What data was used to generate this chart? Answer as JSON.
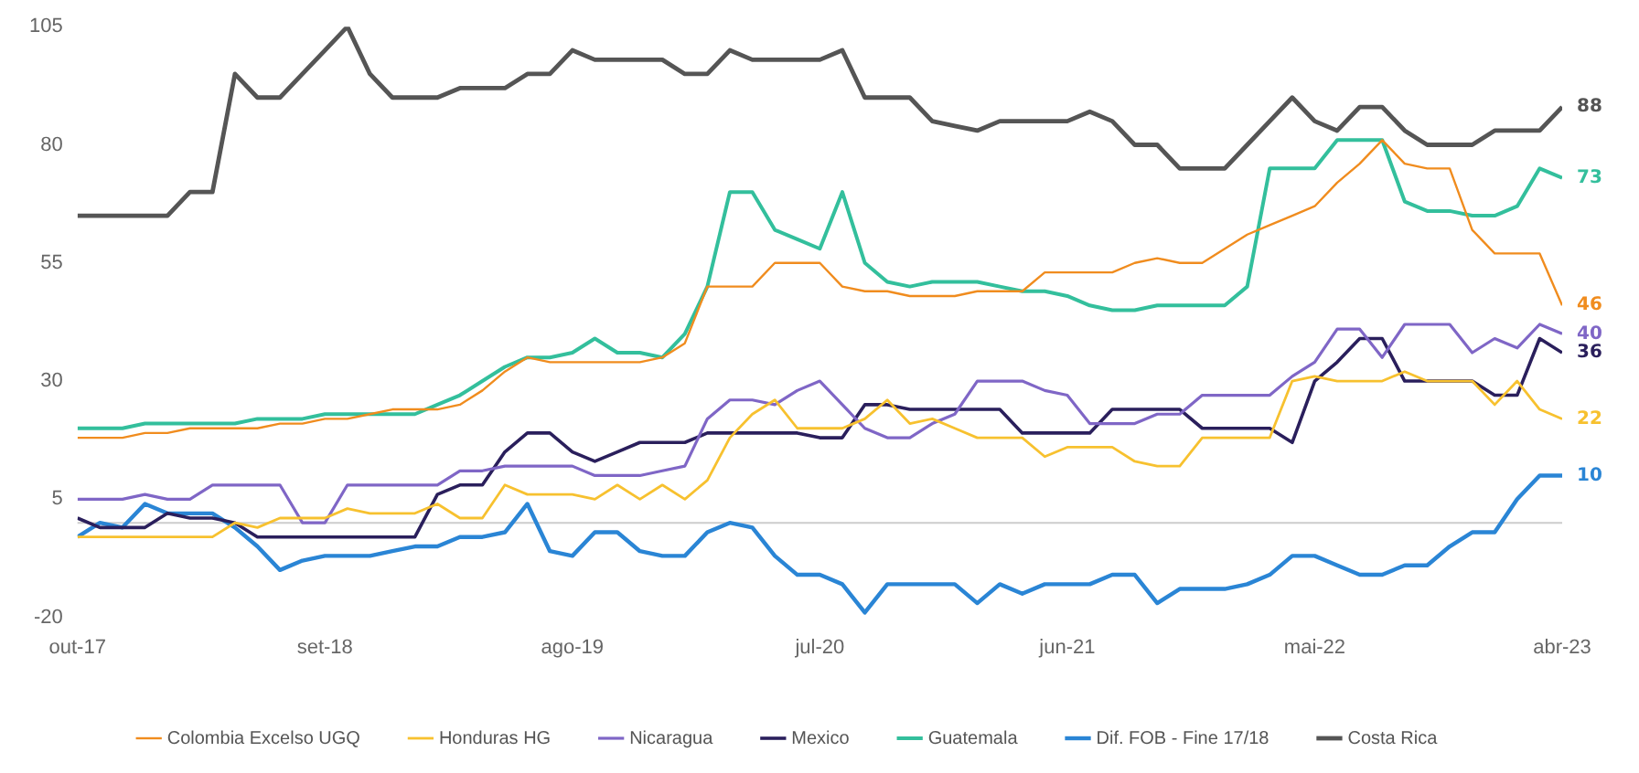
{
  "chart_data": {
    "type": "line",
    "x": [
      "2017-10",
      "2017-11",
      "2017-12",
      "2018-01",
      "2018-02",
      "2018-03",
      "2018-04",
      "2018-05",
      "2018-06",
      "2018-07",
      "2018-08",
      "2018-09",
      "2018-10",
      "2018-11",
      "2018-12",
      "2019-01",
      "2019-02",
      "2019-03",
      "2019-04",
      "2019-05",
      "2019-06",
      "2019-07",
      "2019-08",
      "2019-09",
      "2019-10",
      "2019-11",
      "2019-12",
      "2020-01",
      "2020-02",
      "2020-03",
      "2020-04",
      "2020-05",
      "2020-06",
      "2020-07",
      "2020-08",
      "2020-09",
      "2020-10",
      "2020-11",
      "2020-12",
      "2021-01",
      "2021-02",
      "2021-03",
      "2021-04",
      "2021-05",
      "2021-06",
      "2021-07",
      "2021-08",
      "2021-09",
      "2021-10",
      "2021-11",
      "2021-12",
      "2022-01",
      "2022-02",
      "2022-03",
      "2022-04",
      "2022-05",
      "2022-06",
      "2022-07",
      "2022-08",
      "2022-09",
      "2022-10",
      "2022-11",
      "2022-12",
      "2023-01",
      "2023-02",
      "2023-03",
      "2023-04"
    ],
    "series": [
      {
        "name": "Colombia Excelso UGQ",
        "color": "#f08c1e",
        "values": [
          18,
          18,
          18,
          19,
          19,
          20,
          20,
          20,
          20,
          21,
          21,
          22,
          22,
          23,
          24,
          24,
          24,
          25,
          28,
          32,
          35,
          34,
          34,
          34,
          34,
          34,
          35,
          38,
          50,
          50,
          50,
          55,
          55,
          55,
          50,
          49,
          49,
          48,
          48,
          48,
          49,
          49,
          49,
          53,
          53,
          53,
          53,
          55,
          56,
          55,
          55,
          58,
          61,
          63,
          65,
          67,
          72,
          76,
          81,
          76,
          75,
          75,
          62,
          57,
          57,
          57,
          46
        ]
      },
      {
        "name": "Honduras HG",
        "color": "#f7c12f",
        "values": [
          -3,
          -3,
          -3,
          -3,
          -3,
          -3,
          -3,
          0,
          -1,
          1,
          1,
          1,
          3,
          2,
          2,
          2,
          4,
          1,
          1,
          8,
          6,
          6,
          6,
          5,
          8,
          5,
          8,
          5,
          9,
          18,
          23,
          26,
          20,
          20,
          20,
          22,
          26,
          21,
          22,
          20,
          18,
          18,
          18,
          14,
          16,
          16,
          16,
          13,
          12,
          12,
          18,
          18,
          18,
          18,
          30,
          31,
          30,
          30,
          30,
          32,
          30,
          30,
          30,
          25,
          30,
          24,
          22
        ]
      },
      {
        "name": "Nicaragua",
        "color": "#7f66c6",
        "values": [
          5,
          5,
          5,
          6,
          5,
          5,
          8,
          8,
          8,
          8,
          0,
          0,
          8,
          8,
          8,
          8,
          8,
          11,
          11,
          12,
          12,
          12,
          12,
          10,
          10,
          10,
          11,
          12,
          22,
          26,
          26,
          25,
          28,
          30,
          25,
          20,
          18,
          18,
          21,
          23,
          30,
          30,
          30,
          28,
          27,
          21,
          21,
          21,
          23,
          23,
          27,
          27,
          27,
          27,
          31,
          34,
          41,
          41,
          35,
          42,
          42,
          42,
          36,
          39,
          37,
          42,
          40
        ]
      },
      {
        "name": "Mexico",
        "color": "#2a1f5c",
        "values": [
          1,
          -1,
          -1,
          -1,
          2,
          1,
          1,
          0,
          -3,
          -3,
          -3,
          -3,
          -3,
          -3,
          -3,
          -3,
          6,
          8,
          8,
          15,
          19,
          19,
          15,
          13,
          15,
          17,
          17,
          17,
          19,
          19,
          19,
          19,
          19,
          18,
          18,
          25,
          25,
          24,
          24,
          24,
          24,
          24,
          19,
          19,
          19,
          19,
          24,
          24,
          24,
          24,
          20,
          20,
          20,
          20,
          17,
          30,
          34,
          39,
          39,
          30,
          30,
          30,
          30,
          27,
          27,
          39,
          36
        ]
      },
      {
        "name": "Guatemala",
        "color": "#33bf9c",
        "values": [
          20,
          20,
          20,
          21,
          21,
          21,
          21,
          21,
          22,
          22,
          22,
          23,
          23,
          23,
          23,
          23,
          25,
          27,
          30,
          33,
          35,
          35,
          36,
          39,
          36,
          36,
          35,
          40,
          50,
          70,
          70,
          62,
          60,
          58,
          70,
          55,
          51,
          50,
          51,
          51,
          51,
          50,
          49,
          49,
          48,
          46,
          45,
          45,
          46,
          46,
          46,
          46,
          50,
          75,
          75,
          75,
          81,
          81,
          81,
          68,
          66,
          66,
          65,
          65,
          67,
          75,
          73
        ]
      },
      {
        "name": "Dif. FOB - Fine 17/18",
        "color": "#2a85d5",
        "values": [
          -3,
          0,
          -1,
          4,
          2,
          2,
          2,
          -1,
          -5,
          -10,
          -8,
          -7,
          -7,
          -7,
          -6,
          -5,
          -5,
          -3,
          -3,
          -2,
          4,
          -6,
          -7,
          -2,
          -2,
          -6,
          -7,
          -7,
          -2,
          0,
          -1,
          -7,
          -11,
          -11,
          -13,
          -19,
          -13,
          -13,
          -13,
          -13,
          -17,
          -13,
          -15,
          -13,
          -13,
          -13,
          -11,
          -11,
          -17,
          -14,
          -14,
          -14,
          -13,
          -11,
          -7,
          -7,
          -9,
          -11,
          -11,
          -9,
          -9,
          -5,
          -2,
          -2,
          5,
          10,
          10
        ]
      },
      {
        "name": "Costa Rica",
        "color": "#555555",
        "values": [
          65,
          65,
          65,
          65,
          65,
          70,
          70,
          95,
          90,
          90,
          95,
          100,
          105,
          95,
          90,
          90,
          90,
          92,
          92,
          92,
          95,
          95,
          100,
          98,
          98,
          98,
          98,
          95,
          95,
          100,
          98,
          98,
          98,
          98,
          100,
          90,
          90,
          90,
          85,
          84,
          83,
          85,
          85,
          85,
          85,
          87,
          85,
          80,
          80,
          75,
          75,
          75,
          80,
          85,
          90,
          85,
          83,
          88,
          88,
          83,
          80,
          80,
          80,
          83,
          83,
          83,
          88
        ]
      }
    ],
    "xlim": [
      "2017-10",
      "2023-04"
    ],
    "xticks": [
      {
        "value": "2017-10",
        "label": "out-17"
      },
      {
        "value": "2018-09",
        "label": "set-18"
      },
      {
        "value": "2019-08",
        "label": "ago-19"
      },
      {
        "value": "2020-07",
        "label": "jul-20"
      },
      {
        "value": "2021-06",
        "label": "jun-21"
      },
      {
        "value": "2022-05",
        "label": "mai-22"
      },
      {
        "value": "2023-04",
        "label": "abr-23"
      }
    ],
    "ylim": [
      -20,
      105
    ],
    "yticks": [
      -20,
      5,
      30,
      55,
      80,
      105
    ],
    "ref_lines": [
      {
        "axis": "y",
        "value": 0,
        "label": null,
        "color": "#cccccc"
      }
    ],
    "annotations": [
      {
        "text": "88",
        "x": "2023-04",
        "y": 88
      },
      {
        "text": "73",
        "x": "2023-04",
        "y": 73
      },
      {
        "text": "46",
        "x": "2023-04",
        "y": 46
      },
      {
        "text": "40",
        "x": "2023-04",
        "y": 40
      },
      {
        "text": "36",
        "x": "2023-04",
        "y": 36
      },
      {
        "text": "22",
        "x": "2023-04",
        "y": 22
      },
      {
        "text": "10",
        "x": "2023-04",
        "y": 10
      }
    ],
    "grid": false,
    "legend": "bottom"
  }
}
